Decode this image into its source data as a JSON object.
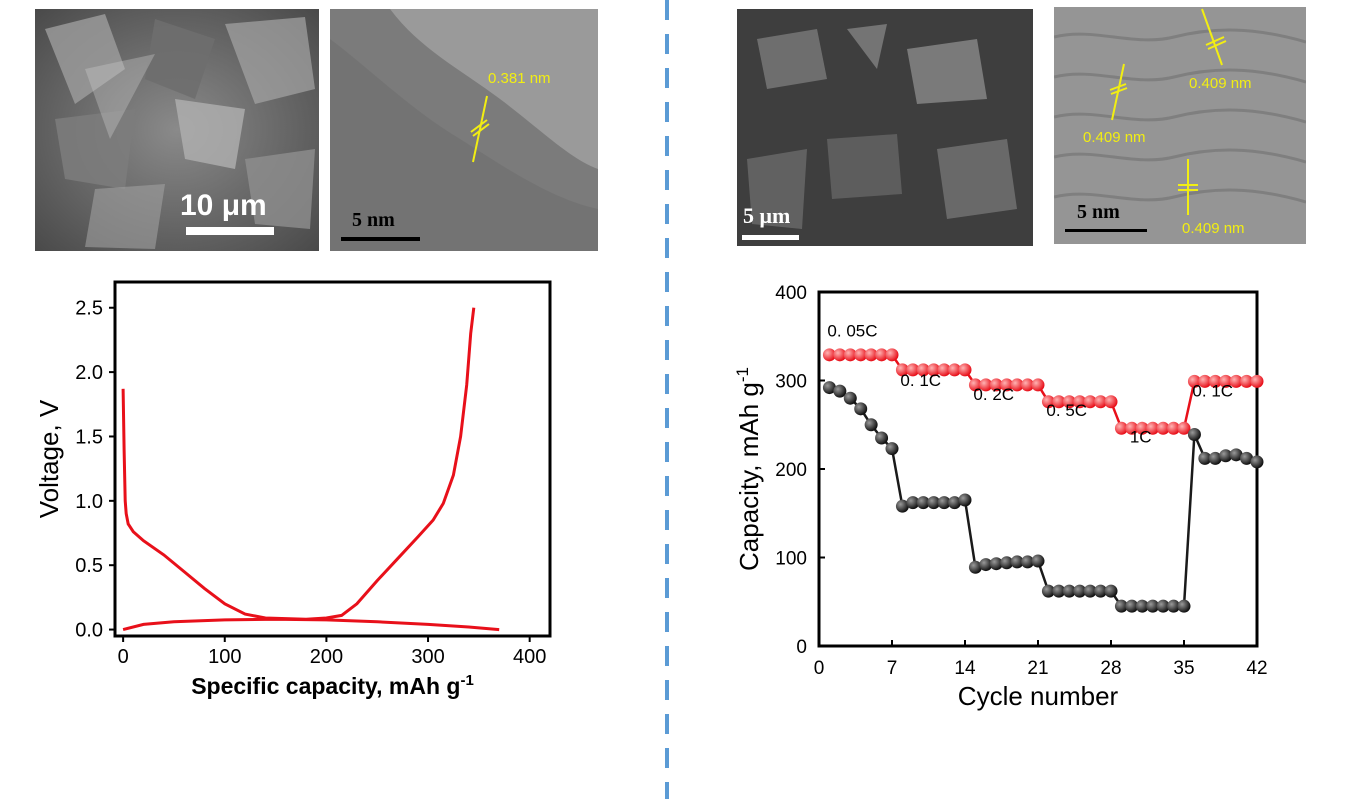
{
  "micrographs": {
    "left_sem": {
      "scale_bar": "10 μm"
    },
    "left_tem": {
      "scale_bar": "5 nm",
      "lattice_spacings": [
        "0.381 nm"
      ]
    },
    "right_sem": {
      "scale_bar": "5 μm"
    },
    "right_tem": {
      "scale_bar": "5 nm",
      "lattice_spacings": [
        "0.409 nm",
        "0.409 nm",
        "0.409 nm"
      ]
    }
  },
  "colors": {
    "curve_red": "#e8101a",
    "marker_black": "#1a1a1a",
    "divider_blue": "#5b9bd5",
    "annotation_yellow": "#f2ee12"
  },
  "chart_data": [
    {
      "type": "line",
      "xlabel": "Specific capacity, mAh g",
      "xlabel_superscript": "-1",
      "ylabel": "Voltage, V",
      "xlim": [
        -8,
        420
      ],
      "ylim": [
        -0.05,
        2.7
      ],
      "xticks": [
        "0",
        "100",
        "200",
        "300",
        "400"
      ],
      "yticks": [
        "0.0",
        "0.5",
        "1.0",
        "1.5",
        "2.0",
        "2.5"
      ],
      "series": [
        {
          "x": [
            0,
            1,
            2,
            3,
            5,
            10,
            20,
            40,
            60,
            80,
            100,
            120,
            140,
            160,
            180,
            200,
            215,
            230,
            250,
            270,
            290,
            305,
            315,
            325,
            332,
            338,
            342,
            345
          ],
          "y": [
            1.87,
            1.4,
            1.0,
            0.9,
            0.82,
            0.76,
            0.69,
            0.58,
            0.45,
            0.32,
            0.2,
            0.12,
            0.09,
            0.085,
            0.08,
            0.09,
            0.11,
            0.2,
            0.38,
            0.55,
            0.72,
            0.85,
            0.98,
            1.2,
            1.5,
            1.9,
            2.3,
            2.5
          ]
        },
        {
          "x": [
            0,
            20,
            50,
            100,
            150,
            200,
            250,
            300,
            340,
            370
          ],
          "y": [
            0.0,
            0.04,
            0.06,
            0.075,
            0.08,
            0.075,
            0.06,
            0.04,
            0.02,
            0.0
          ]
        }
      ]
    },
    {
      "type": "scatter",
      "xlabel": "Cycle number",
      "ylabel": "Capacity, mAh g",
      "ylabel_superscript": "-1",
      "xlim": [
        0,
        42
      ],
      "ylim": [
        0,
        400
      ],
      "xticks": [
        "0",
        "7",
        "14",
        "21",
        "28",
        "35",
        "42"
      ],
      "yticks": [
        "0",
        "100",
        "200",
        "300",
        "400"
      ],
      "rate_labels": [
        "0. 05C",
        "0. 1C",
        "0. 2C",
        "0. 5C",
        "1C",
        "0. 1C"
      ],
      "series": [
        {
          "color": "red",
          "x": [
            1,
            2,
            3,
            4,
            5,
            6,
            7,
            8,
            9,
            10,
            11,
            12,
            13,
            14,
            15,
            16,
            17,
            18,
            19,
            20,
            21,
            22,
            23,
            24,
            25,
            26,
            27,
            28,
            29,
            30,
            31,
            32,
            33,
            34,
            35,
            36,
            37,
            38,
            39,
            40,
            41,
            42
          ],
          "y": [
            329,
            329,
            329,
            329,
            329,
            329,
            329,
            312,
            312,
            312,
            312,
            312,
            312,
            312,
            295,
            295,
            295,
            295,
            295,
            295,
            295,
            276,
            276,
            276,
            276,
            276,
            276,
            276,
            246,
            246,
            246,
            246,
            246,
            246,
            246,
            299,
            299,
            299,
            299,
            299,
            299,
            299
          ]
        },
        {
          "color": "black",
          "x": [
            1,
            2,
            3,
            4,
            5,
            6,
            7,
            8,
            9,
            10,
            11,
            12,
            13,
            14,
            15,
            16,
            17,
            18,
            19,
            20,
            21,
            22,
            23,
            24,
            25,
            26,
            27,
            28,
            29,
            30,
            31,
            32,
            33,
            34,
            35,
            36,
            37,
            38,
            39,
            40,
            41,
            42
          ],
          "y": [
            292,
            288,
            280,
            268,
            250,
            235,
            223,
            158,
            162,
            162,
            162,
            162,
            162,
            165,
            89,
            92,
            93,
            94,
            95,
            95,
            96,
            62,
            62,
            62,
            62,
            62,
            62,
            62,
            45,
            45,
            45,
            45,
            45,
            45,
            45,
            239,
            212,
            212,
            215,
            216,
            212,
            208
          ]
        }
      ]
    }
  ]
}
